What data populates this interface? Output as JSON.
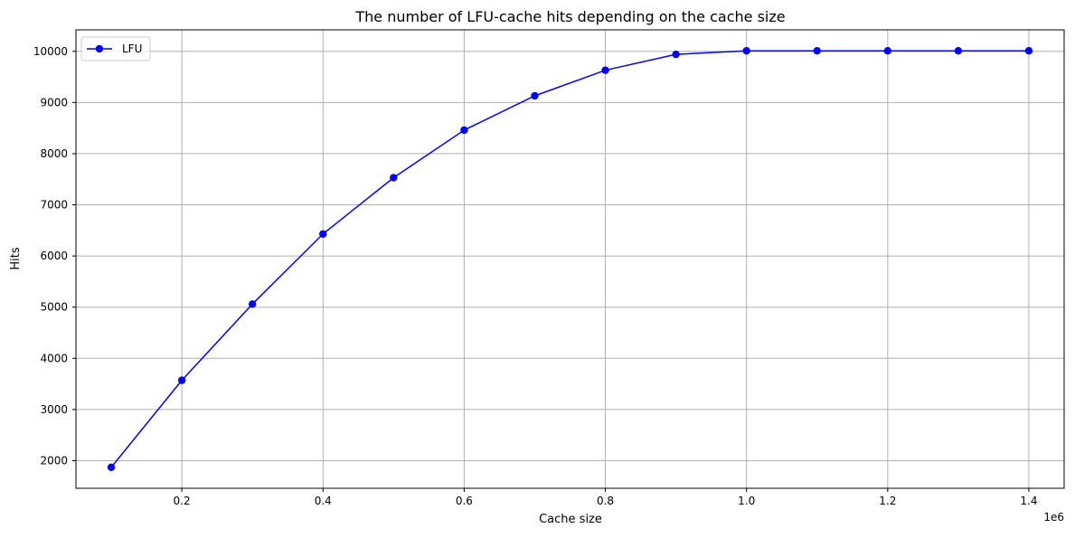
{
  "chart_data": {
    "type": "line",
    "title": "The number of LFU-cache hits depending on the cache size",
    "xlabel": "Cache size",
    "ylabel": "Hits",
    "x_offset_text": "1e6",
    "xlim": [
      50000,
      1450000
    ],
    "ylim": [
      1460,
      10420
    ],
    "x_ticks": [
      200000,
      400000,
      600000,
      800000,
      1000000,
      1200000,
      1400000
    ],
    "x_tick_labels": [
      "0.2",
      "0.4",
      "0.6",
      "0.8",
      "1.0",
      "1.2",
      "1.4"
    ],
    "y_ticks": [
      2000,
      3000,
      4000,
      5000,
      6000,
      7000,
      8000,
      9000,
      10000
    ],
    "y_tick_labels": [
      "2000",
      "3000",
      "4000",
      "5000",
      "6000",
      "7000",
      "8000",
      "9000",
      "10000"
    ],
    "grid": true,
    "legend_position": "upper-left",
    "series": [
      {
        "name": "LFU",
        "color": "#0000ff",
        "marker": "circle",
        "x": [
          100000,
          200000,
          300000,
          400000,
          500000,
          600000,
          700000,
          800000,
          900000,
          1000000,
          1100000,
          1200000,
          1300000,
          1400000
        ],
        "y": [
          1870,
          3570,
          5060,
          6430,
          7530,
          8460,
          9130,
          9630,
          9940,
          10010,
          10010,
          10010,
          10010,
          10010
        ]
      }
    ]
  }
}
